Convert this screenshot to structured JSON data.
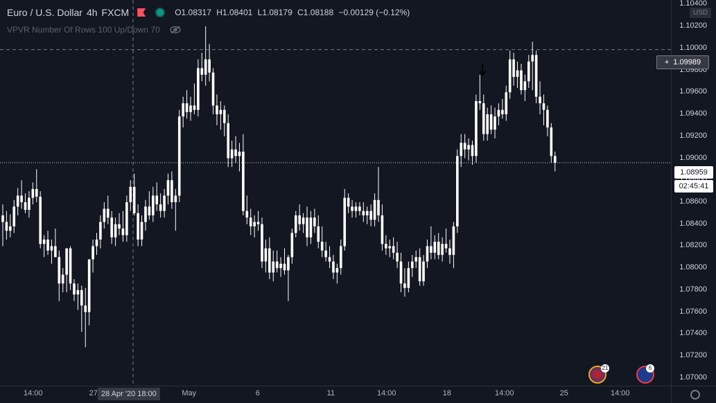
{
  "legend": {
    "symbol": "Euro / U.S. Dollar",
    "interval": "4h",
    "exchange": "FXCM",
    "o_label": "O",
    "o": "1.08317",
    "h_label": "H",
    "h": "1.08401",
    "l_label": "L",
    "l": "1.08179",
    "c_label": "C",
    "c": "1.08188",
    "change": "−0.00129 (−0.12%)"
  },
  "indicator": {
    "name": "VPVR Number Of Rows 100 Up/Down 70",
    "icon": "eye-hidden-icon"
  },
  "currency_badge": "USD",
  "crosshair_price": "1.09989",
  "last_price": "1.08959",
  "countdown": "02:45:41",
  "crosshair_time": "28 Apr '20  18:00",
  "colors": {
    "background": "#131722",
    "candle": "#ffffff",
    "grid": "#2a2e39",
    "text": "#d1d4dc"
  },
  "price_ticks": [
    "1.10400",
    "1.10200",
    "1.10000",
    "1.09800",
    "1.09600",
    "1.09400",
    "1.09200",
    "1.09000",
    "1.08800",
    "1.08600",
    "1.08400",
    "1.08200",
    "1.08000",
    "1.07800",
    "1.07600",
    "1.07400",
    "1.07200",
    "1.07000"
  ],
  "time_ticks": [
    "14:00",
    "27",
    "May",
    "6",
    "11",
    "14:00",
    "18",
    "14:00",
    "25",
    "14:00"
  ],
  "events": [
    {
      "icon": "us-flag-icon",
      "count": "21"
    },
    {
      "icon": "eu-flag-icon",
      "count": "6"
    }
  ],
  "chart_data": {
    "type": "candlestick",
    "title": "Euro / U.S. Dollar",
    "ylim": [
      1.0693,
      1.1044
    ],
    "grid": false,
    "series": [
      {
        "values": [
          {
            "o": 1.0848,
            "h": 1.0858,
            "l": 1.082,
            "c": 1.0842
          },
          {
            "o": 1.0842,
            "h": 1.0852,
            "l": 1.0826,
            "c": 1.0834
          },
          {
            "o": 1.0834,
            "h": 1.0849,
            "l": 1.0828,
            "c": 1.0838
          },
          {
            "o": 1.0838,
            "h": 1.0862,
            "l": 1.0832,
            "c": 1.0856
          },
          {
            "o": 1.0856,
            "h": 1.0873,
            "l": 1.0848,
            "c": 1.0866
          },
          {
            "o": 1.0866,
            "h": 1.088,
            "l": 1.0854,
            "c": 1.086
          },
          {
            "o": 1.086,
            "h": 1.0868,
            "l": 1.085,
            "c": 1.0853
          },
          {
            "o": 1.0853,
            "h": 1.087,
            "l": 1.0846,
            "c": 1.0864
          },
          {
            "o": 1.0864,
            "h": 1.0878,
            "l": 1.0858,
            "c": 1.0872
          },
          {
            "o": 1.0872,
            "h": 1.089,
            "l": 1.086,
            "c": 1.0865
          },
          {
            "o": 1.0865,
            "h": 1.087,
            "l": 1.0818,
            "c": 1.0822
          },
          {
            "o": 1.0822,
            "h": 1.083,
            "l": 1.081,
            "c": 1.0826
          },
          {
            "o": 1.0826,
            "h": 1.0834,
            "l": 1.0812,
            "c": 1.0816
          },
          {
            "o": 1.0816,
            "h": 1.0826,
            "l": 1.0804,
            "c": 1.082
          },
          {
            "o": 1.082,
            "h": 1.0836,
            "l": 1.0812,
            "c": 1.081
          },
          {
            "o": 1.081,
            "h": 1.0816,
            "l": 1.077,
            "c": 1.0786
          },
          {
            "o": 1.0786,
            "h": 1.08,
            "l": 1.0778,
            "c": 1.0794
          },
          {
            "o": 1.0794,
            "h": 1.0804,
            "l": 1.0778,
            "c": 1.0818
          },
          {
            "o": 1.0818,
            "h": 1.082,
            "l": 1.078,
            "c": 1.0786
          },
          {
            "o": 1.0786,
            "h": 1.079,
            "l": 1.077,
            "c": 1.0776
          },
          {
            "o": 1.0776,
            "h": 1.0786,
            "l": 1.0762,
            "c": 1.078
          },
          {
            "o": 1.078,
            "h": 1.0784,
            "l": 1.0742,
            "c": 1.0766
          },
          {
            "o": 1.0766,
            "h": 1.0782,
            "l": 1.0728,
            "c": 1.076
          },
          {
            "o": 1.076,
            "h": 1.0778,
            "l": 1.0748,
            "c": 1.0808
          },
          {
            "o": 1.0808,
            "h": 1.0826,
            "l": 1.0796,
            "c": 1.082
          },
          {
            "o": 1.082,
            "h": 1.0832,
            "l": 1.0812,
            "c": 1.0826
          },
          {
            "o": 1.0826,
            "h": 1.0848,
            "l": 1.0818,
            "c": 1.0842
          },
          {
            "o": 1.0842,
            "h": 1.086,
            "l": 1.0836,
            "c": 1.0854
          },
          {
            "o": 1.0854,
            "h": 1.0866,
            "l": 1.084,
            "c": 1.0846
          },
          {
            "o": 1.0846,
            "h": 1.0852,
            "l": 1.0822,
            "c": 1.0828
          },
          {
            "o": 1.0828,
            "h": 1.0846,
            "l": 1.082,
            "c": 1.084
          },
          {
            "o": 1.084,
            "h": 1.085,
            "l": 1.083,
            "c": 1.0836
          },
          {
            "o": 1.0836,
            "h": 1.0852,
            "l": 1.0824,
            "c": 1.083
          },
          {
            "o": 1.083,
            "h": 1.0866,
            "l": 1.0824,
            "c": 1.086
          },
          {
            "o": 1.086,
            "h": 1.088,
            "l": 1.0852,
            "c": 1.0874
          },
          {
            "o": 1.0874,
            "h": 1.0886,
            "l": 1.0848,
            "c": 1.085
          },
          {
            "o": 1.085,
            "h": 1.0858,
            "l": 1.082,
            "c": 1.0826
          },
          {
            "o": 1.0826,
            "h": 1.0848,
            "l": 1.082,
            "c": 1.0842
          },
          {
            "o": 1.0842,
            "h": 1.0862,
            "l": 1.0834,
            "c": 1.0856
          },
          {
            "o": 1.0856,
            "h": 1.087,
            "l": 1.0844,
            "c": 1.0848
          },
          {
            "o": 1.0848,
            "h": 1.0874,
            "l": 1.0842,
            "c": 1.0866
          },
          {
            "o": 1.0866,
            "h": 1.0878,
            "l": 1.0852,
            "c": 1.0858
          },
          {
            "o": 1.0858,
            "h": 1.0868,
            "l": 1.0846,
            "c": 1.0852
          },
          {
            "o": 1.0852,
            "h": 1.0872,
            "l": 1.0846,
            "c": 1.0866
          },
          {
            "o": 1.0866,
            "h": 1.0886,
            "l": 1.0858,
            "c": 1.088
          },
          {
            "o": 1.088,
            "h": 1.0888,
            "l": 1.0854,
            "c": 1.086
          },
          {
            "o": 1.086,
            "h": 1.0872,
            "l": 1.0834,
            "c": 1.0866
          },
          {
            "o": 1.0866,
            "h": 1.0944,
            "l": 1.086,
            "c": 1.0938
          },
          {
            "o": 1.0938,
            "h": 1.0956,
            "l": 1.0928,
            "c": 1.095
          },
          {
            "o": 1.095,
            "h": 1.0962,
            "l": 1.0936,
            "c": 1.0942
          },
          {
            "o": 1.0942,
            "h": 1.0956,
            "l": 1.0934,
            "c": 1.0948
          },
          {
            "o": 1.0948,
            "h": 1.0968,
            "l": 1.094,
            "c": 1.0944
          },
          {
            "o": 1.0944,
            "h": 1.099,
            "l": 1.0938,
            "c": 1.0982
          },
          {
            "o": 1.0982,
            "h": 1.0996,
            "l": 1.097,
            "c": 1.0976
          },
          {
            "o": 1.0976,
            "h": 1.102,
            "l": 1.0966,
            "c": 1.099
          },
          {
            "o": 1.099,
            "h": 1.1004,
            "l": 1.097,
            "c": 1.0978
          },
          {
            "o": 1.0978,
            "h": 1.0982,
            "l": 1.094,
            "c": 1.0948
          },
          {
            "o": 1.0948,
            "h": 1.0958,
            "l": 1.093,
            "c": 1.094
          },
          {
            "o": 1.094,
            "h": 1.0952,
            "l": 1.0926,
            "c": 1.0944
          },
          {
            "o": 1.0944,
            "h": 1.0948,
            "l": 1.092,
            "c": 1.0932
          },
          {
            "o": 1.0932,
            "h": 1.094,
            "l": 1.0892,
            "c": 1.09
          },
          {
            "o": 1.09,
            "h": 1.0916,
            "l": 1.0892,
            "c": 1.0908
          },
          {
            "o": 1.0908,
            "h": 1.092,
            "l": 1.0896,
            "c": 1.0902
          },
          {
            "o": 1.0902,
            "h": 1.0914,
            "l": 1.0888,
            "c": 1.0906
          },
          {
            "o": 1.0906,
            "h": 1.0922,
            "l": 1.0848,
            "c": 1.0852
          },
          {
            "o": 1.0852,
            "h": 1.0866,
            "l": 1.084,
            "c": 1.0846
          },
          {
            "o": 1.0846,
            "h": 1.0854,
            "l": 1.083,
            "c": 1.0838
          },
          {
            "o": 1.0838,
            "h": 1.0848,
            "l": 1.0828,
            "c": 1.0842
          },
          {
            "o": 1.0842,
            "h": 1.0852,
            "l": 1.0834,
            "c": 1.084
          },
          {
            "o": 1.084,
            "h": 1.0846,
            "l": 1.08,
            "c": 1.0806
          },
          {
            "o": 1.0806,
            "h": 1.0826,
            "l": 1.0796,
            "c": 1.0818
          },
          {
            "o": 1.0818,
            "h": 1.0828,
            "l": 1.079,
            "c": 1.0796
          },
          {
            "o": 1.0796,
            "h": 1.0816,
            "l": 1.0788,
            "c": 1.0806
          },
          {
            "o": 1.0806,
            "h": 1.0816,
            "l": 1.0796,
            "c": 1.08
          },
          {
            "o": 1.08,
            "h": 1.081,
            "l": 1.0792,
            "c": 1.0804
          },
          {
            "o": 1.0804,
            "h": 1.0818,
            "l": 1.0794,
            "c": 1.0798
          },
          {
            "o": 1.0798,
            "h": 1.0812,
            "l": 1.077,
            "c": 1.081
          },
          {
            "o": 1.081,
            "h": 1.0836,
            "l": 1.0804,
            "c": 1.0832
          },
          {
            "o": 1.0832,
            "h": 1.0852,
            "l": 1.0828,
            "c": 1.0848
          },
          {
            "o": 1.0848,
            "h": 1.0858,
            "l": 1.0834,
            "c": 1.084
          },
          {
            "o": 1.084,
            "h": 1.085,
            "l": 1.0832,
            "c": 1.0846
          },
          {
            "o": 1.0846,
            "h": 1.0856,
            "l": 1.082,
            "c": 1.0828
          },
          {
            "o": 1.0828,
            "h": 1.0852,
            "l": 1.0822,
            "c": 1.0846
          },
          {
            "o": 1.0846,
            "h": 1.0854,
            "l": 1.0832,
            "c": 1.0838
          },
          {
            "o": 1.0838,
            "h": 1.0848,
            "l": 1.0818,
            "c": 1.0824
          },
          {
            "o": 1.0824,
            "h": 1.0838,
            "l": 1.081,
            "c": 1.0816
          },
          {
            "o": 1.0816,
            "h": 1.0824,
            "l": 1.0806,
            "c": 1.081
          },
          {
            "o": 1.081,
            "h": 1.082,
            "l": 1.08,
            "c": 1.0806
          },
          {
            "o": 1.0806,
            "h": 1.0812,
            "l": 1.079,
            "c": 1.0796
          },
          {
            "o": 1.0796,
            "h": 1.0804,
            "l": 1.0786,
            "c": 1.08
          },
          {
            "o": 1.08,
            "h": 1.0826,
            "l": 1.0794,
            "c": 1.082
          },
          {
            "o": 1.082,
            "h": 1.0872,
            "l": 1.0816,
            "c": 1.0864
          },
          {
            "o": 1.0864,
            "h": 1.0868,
            "l": 1.085,
            "c": 1.0856
          },
          {
            "o": 1.0856,
            "h": 1.0862,
            "l": 1.0846,
            "c": 1.0852
          },
          {
            "o": 1.0852,
            "h": 1.086,
            "l": 1.0846,
            "c": 1.0856
          },
          {
            "o": 1.0856,
            "h": 1.086,
            "l": 1.0848,
            "c": 1.0852
          },
          {
            "o": 1.0852,
            "h": 1.086,
            "l": 1.0842,
            "c": 1.0848
          },
          {
            "o": 1.0848,
            "h": 1.0856,
            "l": 1.084,
            "c": 1.0852
          },
          {
            "o": 1.0852,
            "h": 1.0858,
            "l": 1.0838,
            "c": 1.0844
          },
          {
            "o": 1.0844,
            "h": 1.0868,
            "l": 1.0838,
            "c": 1.0862
          },
          {
            "o": 1.0862,
            "h": 1.0892,
            "l": 1.0842,
            "c": 1.0848
          },
          {
            "o": 1.0848,
            "h": 1.0858,
            "l": 1.0816,
            "c": 1.0822
          },
          {
            "o": 1.0822,
            "h": 1.083,
            "l": 1.0812,
            "c": 1.0818
          },
          {
            "o": 1.0818,
            "h": 1.0826,
            "l": 1.081,
            "c": 1.082
          },
          {
            "o": 1.082,
            "h": 1.0828,
            "l": 1.0808,
            "c": 1.0814
          },
          {
            "o": 1.0814,
            "h": 1.0824,
            "l": 1.08,
            "c": 1.0806
          },
          {
            "o": 1.0806,
            "h": 1.0814,
            "l": 1.0778,
            "c": 1.0786
          },
          {
            "o": 1.0786,
            "h": 1.08,
            "l": 1.0774,
            "c": 1.0782
          },
          {
            "o": 1.0782,
            "h": 1.0806,
            "l": 1.0778,
            "c": 1.08
          },
          {
            "o": 1.08,
            "h": 1.0812,
            "l": 1.0792,
            "c": 1.0806
          },
          {
            "o": 1.0806,
            "h": 1.0816,
            "l": 1.08,
            "c": 1.081
          },
          {
            "o": 1.081,
            "h": 1.0818,
            "l": 1.0784,
            "c": 1.0788
          },
          {
            "o": 1.0788,
            "h": 1.0812,
            "l": 1.0784,
            "c": 1.0806
          },
          {
            "o": 1.0806,
            "h": 1.0826,
            "l": 1.08,
            "c": 1.082
          },
          {
            "o": 1.082,
            "h": 1.0838,
            "l": 1.0808,
            "c": 1.0814
          },
          {
            "o": 1.0814,
            "h": 1.083,
            "l": 1.0808,
            "c": 1.0824
          },
          {
            "o": 1.0824,
            "h": 1.0832,
            "l": 1.0808,
            "c": 1.0812
          },
          {
            "o": 1.0812,
            "h": 1.0828,
            "l": 1.0806,
            "c": 1.0822
          },
          {
            "o": 1.0822,
            "h": 1.0836,
            "l": 1.0814,
            "c": 1.0818
          },
          {
            "o": 1.0818,
            "h": 1.0826,
            "l": 1.0804,
            "c": 1.0812
          },
          {
            "o": 1.0812,
            "h": 1.0842,
            "l": 1.08,
            "c": 1.0838
          },
          {
            "o": 1.0838,
            "h": 1.0908,
            "l": 1.0832,
            "c": 1.0902
          },
          {
            "o": 1.0902,
            "h": 1.0922,
            "l": 1.0892,
            "c": 1.0914
          },
          {
            "o": 1.0914,
            "h": 1.0922,
            "l": 1.09,
            "c": 1.0908
          },
          {
            "o": 1.0908,
            "h": 1.0918,
            "l": 1.0898,
            "c": 1.0912
          },
          {
            "o": 1.0912,
            "h": 1.0916,
            "l": 1.0894,
            "c": 1.0902
          },
          {
            "o": 1.0902,
            "h": 1.0958,
            "l": 1.0896,
            "c": 1.0952
          },
          {
            "o": 1.0952,
            "h": 1.0976,
            "l": 1.0944,
            "c": 1.095
          },
          {
            "o": 1.095,
            "h": 1.0958,
            "l": 1.0916,
            "c": 1.0922
          },
          {
            "o": 1.0922,
            "h": 1.0946,
            "l": 1.0916,
            "c": 1.094
          },
          {
            "o": 1.094,
            "h": 1.0948,
            "l": 1.0922,
            "c": 1.0926
          },
          {
            "o": 1.0926,
            "h": 1.0946,
            "l": 1.0918,
            "c": 1.0938
          },
          {
            "o": 1.0938,
            "h": 1.095,
            "l": 1.093,
            "c": 1.0944
          },
          {
            "o": 1.0944,
            "h": 1.0954,
            "l": 1.0936,
            "c": 1.094
          },
          {
            "o": 1.094,
            "h": 1.0966,
            "l": 1.0934,
            "c": 1.096
          },
          {
            "o": 1.096,
            "h": 1.0998,
            "l": 1.0954,
            "c": 1.099
          },
          {
            "o": 1.099,
            "h": 1.0996,
            "l": 1.0966,
            "c": 1.0974
          },
          {
            "o": 1.0974,
            "h": 1.0988,
            "l": 1.0964,
            "c": 1.098
          },
          {
            "o": 1.098,
            "h": 1.0986,
            "l": 1.0958,
            "c": 1.0962
          },
          {
            "o": 1.0962,
            "h": 1.0976,
            "l": 1.0952,
            "c": 1.097
          },
          {
            "o": 1.097,
            "h": 1.0994,
            "l": 1.0964,
            "c": 1.0988
          },
          {
            "o": 1.0988,
            "h": 1.1006,
            "l": 1.0962,
            "c": 1.0994
          },
          {
            "o": 1.0994,
            "h": 1.0998,
            "l": 1.095,
            "c": 1.0956
          },
          {
            "o": 1.0956,
            "h": 1.097,
            "l": 1.094,
            "c": 1.095
          },
          {
            "o": 1.095,
            "h": 1.0958,
            "l": 1.093,
            "c": 1.0944
          },
          {
            "o": 1.0944,
            "h": 1.0948,
            "l": 1.092,
            "c": 1.0928
          },
          {
            "o": 1.0928,
            "h": 1.0932,
            "l": 1.0896,
            "c": 1.0902
          },
          {
            "o": 1.0902,
            "h": 1.0906,
            "l": 1.0888,
            "c": 1.0896
          }
        ]
      }
    ]
  }
}
